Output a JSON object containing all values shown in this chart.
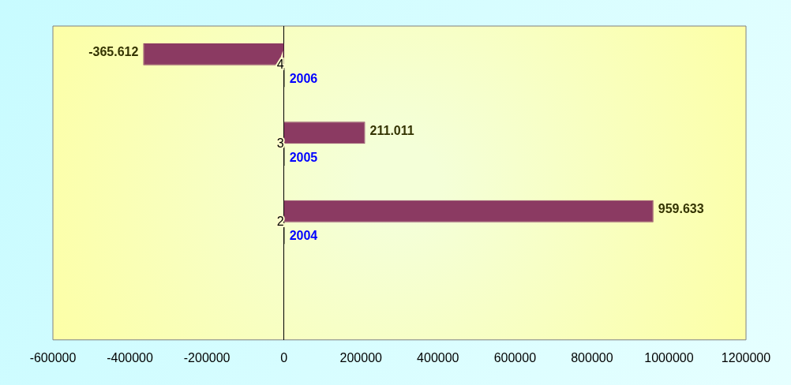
{
  "chart_data": {
    "type": "bar",
    "orientation": "horizontal",
    "categories": [
      "4",
      "3",
      "2",
      null
    ],
    "series": [
      {
        "color": "#8b3a62",
        "values": [
          -365612,
          211011,
          959633,
          null
        ],
        "value_labels": [
          "-365.612",
          "211.011",
          "959.633",
          null
        ]
      },
      {
        "color": "#000000",
        "values": [
          2006,
          2005,
          2004,
          null
        ],
        "value_labels": [
          "2006",
          "2005",
          "2004",
          null
        ]
      }
    ],
    "xlim": [
      -600000,
      1200000
    ],
    "xticks": [
      -600000,
      -400000,
      -200000,
      0,
      200000,
      400000,
      600000,
      800000,
      1000000,
      1200000
    ],
    "grid": false,
    "legend": false
  }
}
